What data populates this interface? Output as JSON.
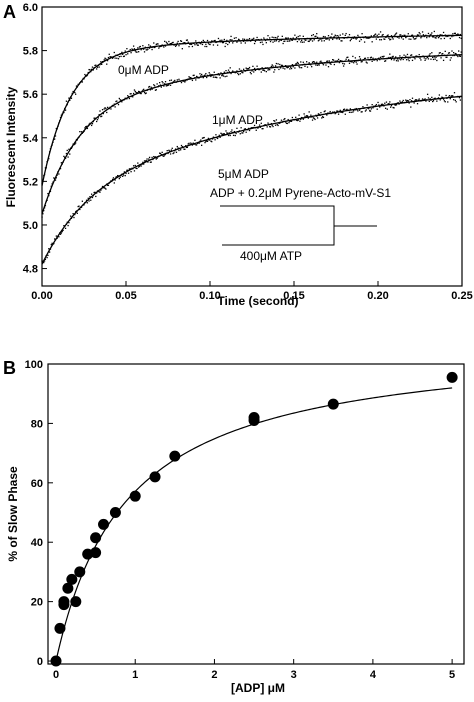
{
  "chart_data": [
    {
      "panel": "A",
      "type": "scatter",
      "xlabel": "Time (second)",
      "ylabel": "Fluorescent Intensity",
      "xlim": [
        0,
        0.25
      ],
      "ylim": [
        4.72,
        6.0
      ],
      "xticks": [
        "0.00",
        "0.05",
        "0.10",
        "0.15",
        "0.20",
        "0.25"
      ],
      "yticks": [
        "4.8",
        "5.0",
        "5.2",
        "5.4",
        "5.6",
        "5.8",
        "6.0"
      ],
      "series": [
        {
          "name": "0μM ADP",
          "model": {
            "y0": 5.18,
            "a1": 0.62,
            "k1": 60,
            "a2": 0.09,
            "k2": 6,
            "noise": 0.018
          }
        },
        {
          "name": "1μM ADP",
          "model": {
            "y0": 5.05,
            "a1": 0.5,
            "k1": 45,
            "a2": 0.28,
            "k2": 7,
            "noise": 0.018
          }
        },
        {
          "name": "5μM ADP",
          "model": {
            "y0": 4.82,
            "a1": 0.32,
            "k1": 38,
            "a2": 0.58,
            "k2": 6,
            "noise": 0.018
          }
        }
      ],
      "annotations": {
        "mix_top": "ADP + 0.2μM Pyrene-Acto-mV-S1",
        "mix_bottom": "400μM ATP"
      }
    },
    {
      "panel": "B",
      "type": "scatter",
      "xlabel": "[ADP] μM",
      "ylabel": "% of Slow Phase",
      "xlim": [
        0,
        5
      ],
      "ylim": [
        0,
        100
      ],
      "xticks": [
        "0",
        "1",
        "2",
        "3",
        "4",
        "5"
      ],
      "yticks": [
        "0",
        "20",
        "40",
        "60",
        "80",
        "100"
      ],
      "points": [
        [
          0,
          0
        ],
        [
          0.05,
          11
        ],
        [
          0.1,
          19
        ],
        [
          0.1,
          20
        ],
        [
          0.15,
          24.5
        ],
        [
          0.2,
          27.5
        ],
        [
          0.25,
          20
        ],
        [
          0.3,
          30
        ],
        [
          0.4,
          36
        ],
        [
          0.5,
          36.5
        ],
        [
          0.5,
          41.5
        ],
        [
          0.6,
          46
        ],
        [
          0.75,
          50
        ],
        [
          1.0,
          55.5
        ],
        [
          1.25,
          62
        ],
        [
          1.5,
          69
        ],
        [
          2.5,
          81
        ],
        [
          2.5,
          82
        ],
        [
          3.5,
          86.5
        ],
        [
          5.0,
          95.5
        ]
      ],
      "fit": {
        "type": "hyperbolic",
        "max": 108.5,
        "k": 0.9
      }
    }
  ]
}
